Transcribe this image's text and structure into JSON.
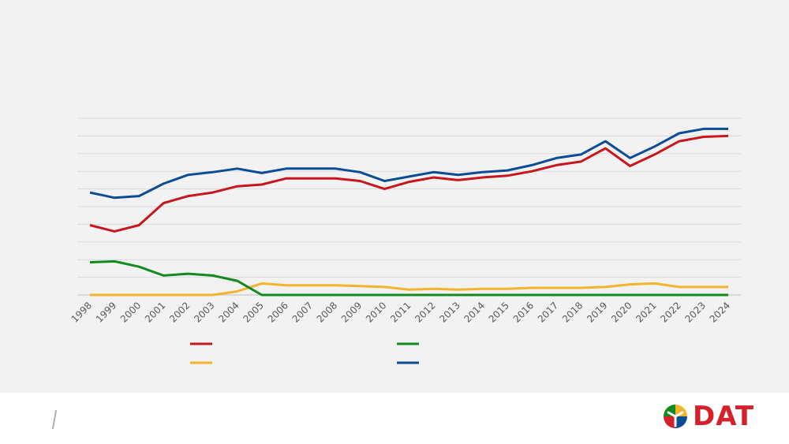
{
  "chart_data": {
    "type": "line",
    "title": "",
    "xlabel": "",
    "ylabel": "",
    "categories": [
      "1998",
      "1999",
      "2000",
      "2001",
      "2002",
      "2003",
      "2004",
      "2005",
      "2006",
      "2007",
      "2008",
      "2009",
      "2010",
      "2011",
      "2012",
      "2013",
      "2014",
      "2015",
      "2016",
      "2017",
      "2018",
      "2019",
      "2020",
      "2021",
      "2022",
      "2023",
      "2024"
    ],
    "ylim": [
      0,
      100
    ],
    "grid": true,
    "legend_position": "bottom",
    "series": [
      {
        "color": "#c8161d",
        "values": [
          39.5,
          36.0,
          39.5,
          52.0,
          56.0,
          58.0,
          61.5,
          62.5,
          66.0,
          66.0,
          66.0,
          64.5,
          60.0,
          64.0,
          66.5,
          65.0,
          66.5,
          67.5,
          70.0,
          73.5,
          75.5,
          83.0,
          73.0,
          79.5,
          87.0,
          89.5,
          90.0
        ]
      },
      {
        "color": "#f4b32c",
        "values": [
          0,
          0,
          0,
          0,
          0,
          0,
          2.0,
          6.5,
          5.5,
          5.5,
          5.5,
          5.0,
          4.5,
          3.0,
          3.5,
          3.0,
          3.5,
          3.5,
          4.0,
          4.0,
          4.0,
          4.5,
          6.0,
          6.5,
          4.5,
          4.5,
          4.5
        ]
      },
      {
        "color": "#118a1e",
        "values": [
          18.5,
          19.0,
          16.0,
          11.0,
          12.0,
          11.0,
          8.0,
          0,
          0,
          0,
          0,
          0,
          0,
          0,
          0,
          0,
          0,
          0,
          0,
          0,
          0,
          0,
          0,
          0,
          0,
          0,
          0
        ]
      },
      {
        "color": "#0b4c96",
        "values": [
          58.0,
          55.0,
          56.0,
          63.0,
          68.0,
          69.5,
          71.5,
          69.0,
          71.5,
          71.5,
          71.5,
          69.5,
          64.5,
          67.0,
          69.5,
          68.0,
          69.5,
          70.5,
          73.5,
          77.5,
          79.5,
          87.0,
          77.5,
          84.0,
          91.5,
          94.0,
          94.0
        ]
      }
    ]
  },
  "logo": {
    "text": "DAT"
  }
}
